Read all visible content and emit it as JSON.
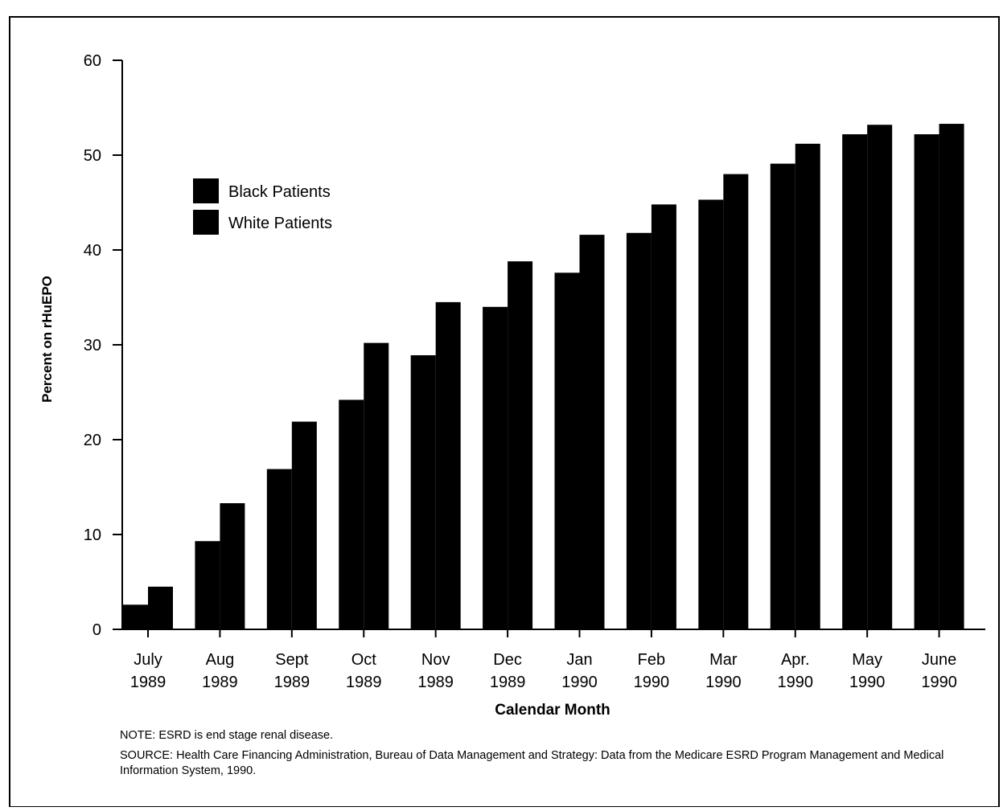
{
  "chart_data": {
    "type": "bar",
    "xlabel": "Calendar Month",
    "ylabel": "Percent on rHuEPO",
    "ylim": [
      0,
      60
    ],
    "yticks": [
      "0",
      "10",
      "20",
      "30",
      "40",
      "50",
      "60"
    ],
    "categories": [
      [
        "July",
        "1989"
      ],
      [
        "Aug",
        "1989"
      ],
      [
        "Sept",
        "1989"
      ],
      [
        "Oct",
        "1989"
      ],
      [
        "Nov",
        "1989"
      ],
      [
        "Dec",
        "1989"
      ],
      [
        "Jan",
        "1990"
      ],
      [
        "Feb",
        "1990"
      ],
      [
        "Mar",
        "1990"
      ],
      [
        "Apr.",
        "1990"
      ],
      [
        "May",
        "1990"
      ],
      [
        "June",
        "1990"
      ]
    ],
    "series": [
      {
        "name": "Black Patients",
        "color": "#000000",
        "values": [
          2.6,
          9.3,
          16.9,
          24.2,
          28.9,
          34.0,
          37.6,
          41.8,
          45.3,
          49.1,
          52.2,
          52.2
        ]
      },
      {
        "name": "White Patients",
        "color": "#000000",
        "values": [
          4.5,
          13.3,
          21.9,
          30.2,
          34.5,
          38.8,
          41.6,
          44.8,
          48.0,
          51.2,
          53.2,
          53.3
        ]
      }
    ],
    "grid": false,
    "legend": "upper-left"
  },
  "notes": {
    "note": "NOTE: ESRD is end stage renal disease.",
    "source": "SOURCE: Health Care Financing Administration, Bureau of Data Management and Strategy: Data from the Medicare ESRD Program Management and Medical Information System, 1990."
  }
}
